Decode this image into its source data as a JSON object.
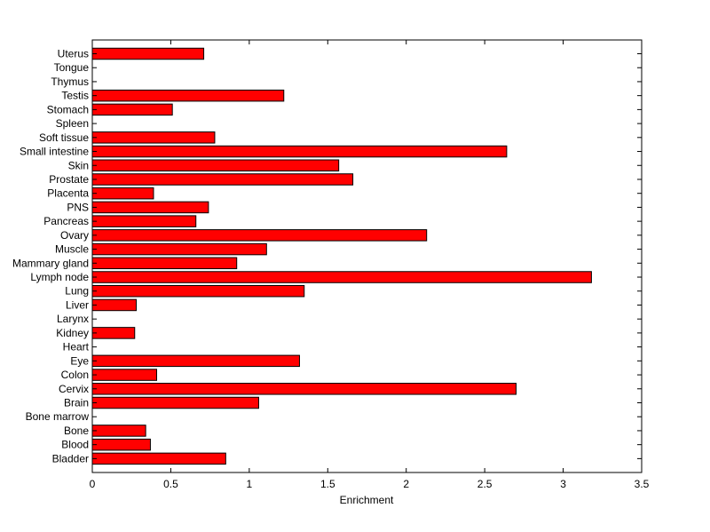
{
  "chart_data": {
    "type": "bar",
    "orientation": "horizontal",
    "title": "",
    "xlabel": "Enrichment",
    "ylabel": "",
    "xlim": [
      0,
      3.5
    ],
    "xticks": [
      0,
      0.5,
      1,
      1.5,
      2,
      2.5,
      3,
      3.5
    ],
    "xtick_labels": [
      "0",
      "0.5",
      "1",
      "1.5",
      "2",
      "2.5",
      "3",
      "3.5"
    ],
    "grid": false,
    "legend": "none",
    "bar_color": "#ff0000",
    "edge_color": "#000000",
    "categories": [
      "Uterus",
      "Tongue",
      "Thymus",
      "Testis",
      "Stomach",
      "Spleen",
      "Soft tissue",
      "Small intestine",
      "Skin",
      "Prostate",
      "Placenta",
      "PNS",
      "Pancreas",
      "Ovary",
      "Muscle",
      "Mammary gland",
      "Lymph node",
      "Lung",
      "Liver",
      "Larynx",
      "Kidney",
      "Heart",
      "Eye",
      "Colon",
      "Cervix",
      "Brain",
      "Bone marrow",
      "Bone",
      "Blood",
      "Bladder"
    ],
    "values": [
      0.71,
      0,
      0,
      1.22,
      0.51,
      0,
      0.78,
      2.64,
      1.57,
      1.66,
      0.39,
      0.74,
      0.66,
      2.13,
      1.11,
      0.92,
      3.18,
      1.35,
      0.28,
      0,
      0.27,
      0,
      1.32,
      0.41,
      2.7,
      1.06,
      0,
      0.34,
      0.37,
      0.85
    ]
  }
}
